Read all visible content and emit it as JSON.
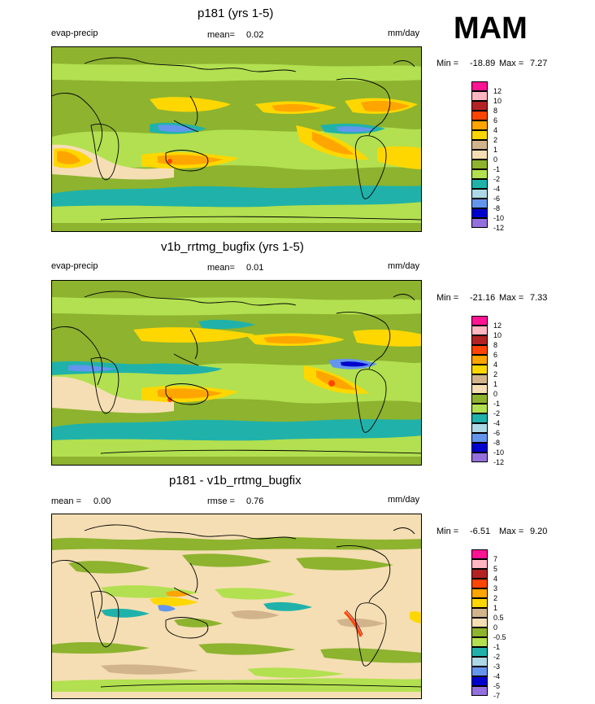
{
  "season": "MAM",
  "chart_data": [
    {
      "type": "heatmap",
      "title": "p181 (yrs 1-5)",
      "variable": "evap-precip",
      "mean_label": "mean=",
      "mean": "0.02",
      "units": "mm/day",
      "min_label": "Min =",
      "min": "-18.89",
      "max_label": "Max =",
      "max": "7.27",
      "levels": [
        "12",
        "10",
        "8",
        "6",
        "4",
        "2",
        "1",
        "0",
        "-1",
        "-2",
        "-4",
        "-6",
        "-8",
        "-10",
        "-12"
      ],
      "colors": [
        "#ff1493",
        "#ffb6c1",
        "#b22222",
        "#ff4500",
        "#ffa500",
        "#ffd700",
        "#d2b48c",
        "#f5deb3",
        "#8db32f",
        "#b2e050",
        "#20b2aa",
        "#add8e6",
        "#6495ed",
        "#0000cd",
        "#9370db"
      ]
    },
    {
      "type": "heatmap",
      "title": "v1b_rrtmg_bugfix (yrs 1-5)",
      "variable": "evap-precip",
      "mean_label": "mean=",
      "mean": "0.01",
      "units": "mm/day",
      "min_label": "Min =",
      "min": "-21.16",
      "max_label": "Max =",
      "max": "7.33",
      "levels": [
        "12",
        "10",
        "8",
        "6",
        "4",
        "2",
        "1",
        "0",
        "-1",
        "-2",
        "-4",
        "-6",
        "-8",
        "-10",
        "-12"
      ],
      "colors": [
        "#ff1493",
        "#ffb6c1",
        "#b22222",
        "#ff4500",
        "#ffa500",
        "#ffd700",
        "#d2b48c",
        "#f5deb3",
        "#8db32f",
        "#b2e050",
        "#20b2aa",
        "#add8e6",
        "#6495ed",
        "#0000cd",
        "#9370db"
      ]
    },
    {
      "type": "heatmap",
      "title": "p181 - v1b_rrtmg_bugfix",
      "variable": "",
      "mean_label": "mean =",
      "mean": "0.00",
      "rmse_label": "rmse =",
      "rmse": "0.76",
      "units": "mm/day",
      "min_label": "Min =",
      "min": "-6.51",
      "max_label": "Max =",
      "max": "9.20",
      "levels": [
        "7",
        "5",
        "4",
        "3",
        "2",
        "1",
        "0.5",
        "0",
        "-0.5",
        "-1",
        "-2",
        "-3",
        "-4",
        "-5",
        "-7"
      ],
      "colors": [
        "#ff1493",
        "#ffb6c1",
        "#b22222",
        "#ff4500",
        "#ffa500",
        "#ffd700",
        "#d2b48c",
        "#f5deb3",
        "#8db32f",
        "#b2e050",
        "#20b2aa",
        "#add8e6",
        "#6495ed",
        "#0000cd",
        "#9370db"
      ]
    }
  ]
}
